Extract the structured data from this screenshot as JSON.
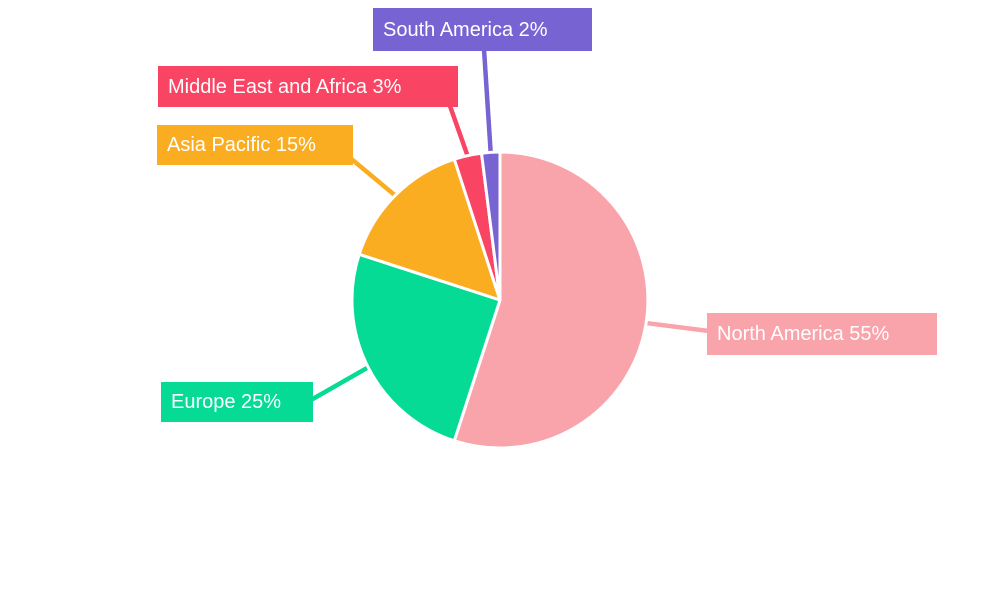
{
  "chart_data": {
    "type": "pie",
    "title": "",
    "background": "#FFFFFF",
    "slice_border_color": "#FFFFFF",
    "start_angle_deg": 0,
    "direction": "clockwise",
    "legend": "none",
    "categories": [
      "North America",
      "Europe",
      "Asia Pacific",
      "Middle East and Africa",
      "South America"
    ],
    "values": [
      55,
      25,
      15,
      3,
      2
    ],
    "slices": [
      {
        "id": "north-america",
        "name": "North America",
        "value": 55,
        "label": "North America 55%",
        "color": "#F9A3AA"
      },
      {
        "id": "europe",
        "name": "Europe",
        "value": 25,
        "label": "Europe 25%",
        "color": "#05DB94"
      },
      {
        "id": "asia-pacific",
        "name": "Asia Pacific",
        "value": 15,
        "label": "Asia Pacific 15%",
        "color": "#FBAD21"
      },
      {
        "id": "middle-east-and-africa",
        "name": "Middle East and Africa",
        "value": 3,
        "label": "Middle East and Africa 3%",
        "color": "#FA4464"
      },
      {
        "id": "south-america",
        "name": "South America",
        "value": 2,
        "label": "South America 2%",
        "color": "#7764D2"
      }
    ]
  }
}
